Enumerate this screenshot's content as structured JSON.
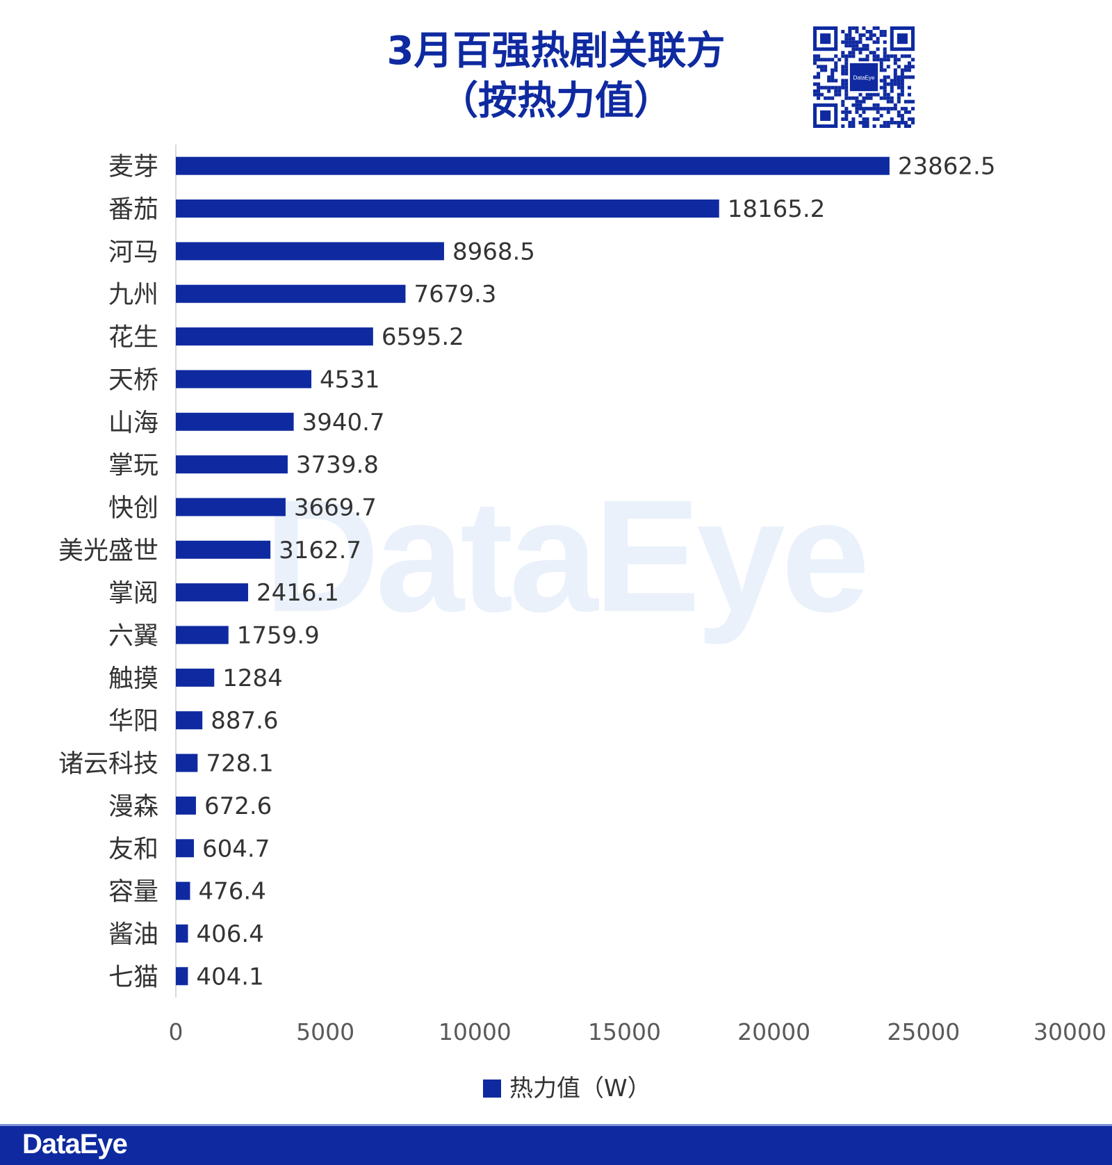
{
  "chart_data": {
    "type": "bar",
    "orientation": "horizontal",
    "title": "3月百强热剧关联方",
    "subtitle": "（按热力值）",
    "categories": [
      "麦芽",
      "番茄",
      "河马",
      "九州",
      "花生",
      "天桥",
      "山海",
      "掌玩",
      "快创",
      "美光盛世",
      "掌阅",
      "六翼",
      "触摸",
      "华阳",
      "诸云科技",
      "漫森",
      "友和",
      "容量",
      "酱油",
      "七猫"
    ],
    "series": [
      {
        "name": "热力值（W）",
        "values": [
          23862.5,
          18165.2,
          8968.5,
          7679.3,
          6595.2,
          4531,
          3940.7,
          3739.8,
          3669.7,
          3162.7,
          2416.1,
          1759.9,
          1284,
          887.6,
          728.1,
          672.6,
          604.7,
          476.4,
          406.4,
          404.1
        ]
      }
    ],
    "value_labels": [
      "23862.5",
      "18165.2",
      "8968.5",
      "7679.3",
      "6595.2",
      "4531",
      "3940.7",
      "3739.8",
      "3669.7",
      "3162.7",
      "2416.1",
      "1759.9",
      "1284",
      "887.6",
      "728.1",
      "672.6",
      "604.7",
      "476.4",
      "406.4",
      "404.1"
    ],
    "xlim": [
      0,
      30000
    ],
    "xticks": [
      "0",
      "5000",
      "10000",
      "15000",
      "20000",
      "25000",
      "30000"
    ],
    "legend_position": "bottom",
    "grid": false,
    "bar_color": "#0f2aa0"
  },
  "branding": {
    "watermark": "DataEye",
    "qr_logo": "DataEye",
    "footer_logo": "DataEye"
  }
}
